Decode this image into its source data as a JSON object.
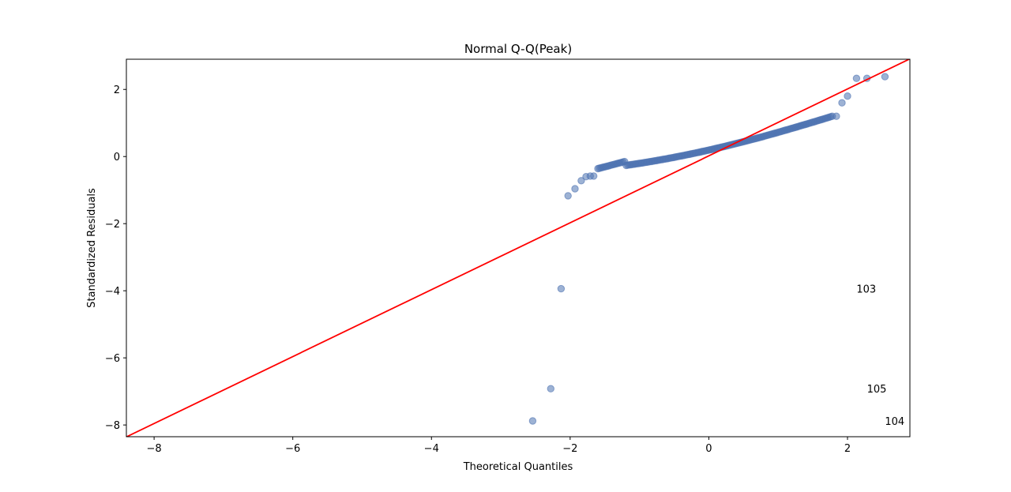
{
  "chart_data": {
    "type": "scatter",
    "title": "Normal Q-Q(Peak)",
    "xlabel": "Theoretical Quantiles",
    "ylabel": "Standardized Residuals",
    "xlim": [
      -8.4,
      2.9
    ],
    "ylim": [
      -8.35,
      2.9
    ],
    "xticks": [
      -8,
      -6,
      -4,
      -2,
      0,
      2
    ],
    "yticks": [
      -8,
      -6,
      -4,
      -2,
      0,
      2
    ],
    "xtick_labels": [
      "−8",
      "−6",
      "−4",
      "−2",
      "0",
      "2"
    ],
    "ytick_labels": [
      "−8",
      "−6",
      "−4",
      "−2",
      "0",
      "2"
    ],
    "grid": false,
    "marker_color": "#4c72b0",
    "line_color": "#ff0000",
    "reference_line": {
      "slope": 0.997,
      "intercept": 0.02
    },
    "outlier_points": [
      {
        "x": -2.54,
        "y": -7.88
      },
      {
        "x": -2.28,
        "y": -6.92
      },
      {
        "x": -2.13,
        "y": -3.94
      }
    ],
    "body_start_points": [
      {
        "x": -2.03,
        "y": -1.17
      },
      {
        "x": -1.93,
        "y": -0.96
      },
      {
        "x": -1.84,
        "y": -0.72
      },
      {
        "x": -1.77,
        "y": -0.6
      },
      {
        "x": -1.71,
        "y": -0.58
      },
      {
        "x": -1.66,
        "y": -0.58
      }
    ],
    "body": {
      "x_start": -1.6,
      "x_end": 1.78,
      "count": 150,
      "y_start": -0.36,
      "y_end": 1.2
    },
    "upper_points": [
      {
        "x": 1.84,
        "y": 1.2
      },
      {
        "x": 1.92,
        "y": 1.6
      },
      {
        "x": 2.0,
        "y": 1.8
      },
      {
        "x": 2.13,
        "y": 2.33
      },
      {
        "x": 2.28,
        "y": 2.33
      },
      {
        "x": 2.54,
        "y": 2.38
      }
    ],
    "annotations": [
      {
        "text": "103",
        "x": 2.13,
        "y": -3.94
      },
      {
        "text": "105",
        "x": 2.28,
        "y": -6.92
      },
      {
        "text": "104",
        "x": 2.54,
        "y": -7.88
      }
    ]
  }
}
